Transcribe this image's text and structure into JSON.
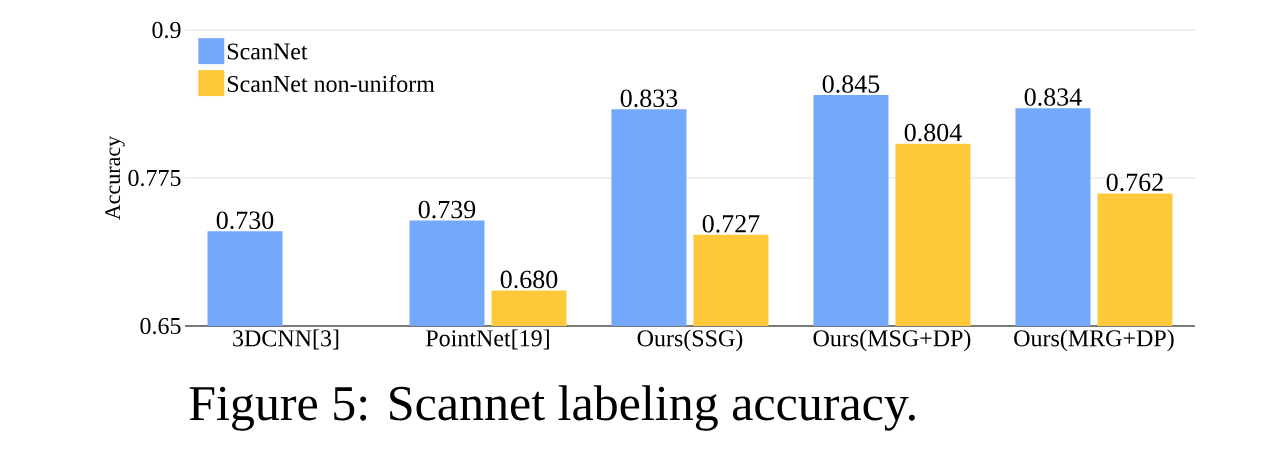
{
  "chart_data": {
    "type": "bar",
    "ylabel": "Accuracy",
    "categories": [
      "3DCNN[3]",
      "PointNet[19]",
      "Ours(SSG)",
      "Ours(MSG+DP)",
      "Ours(MRG+DP)"
    ],
    "series": [
      {
        "name": "ScanNet",
        "color": "#74a8fb",
        "values": [
          0.73,
          0.739,
          0.833,
          0.845,
          0.834
        ],
        "value_labels": [
          "0.730",
          "0.739",
          "0.833",
          "0.845",
          "0.834"
        ]
      },
      {
        "name": "ScanNet non-uniform",
        "color": "#fdc93b",
        "values": [
          null,
          0.68,
          0.727,
          0.804,
          0.762
        ],
        "value_labels": [
          null,
          "0.680",
          "0.727",
          "0.804",
          "0.762"
        ]
      }
    ],
    "ylim": [
      0.65,
      0.9
    ],
    "yticks": [
      0.65,
      0.775,
      0.9
    ],
    "grid": "y",
    "legend": "top left",
    "annotations": [
      "Figure 5: Scannet labeling accuracy."
    ]
  }
}
